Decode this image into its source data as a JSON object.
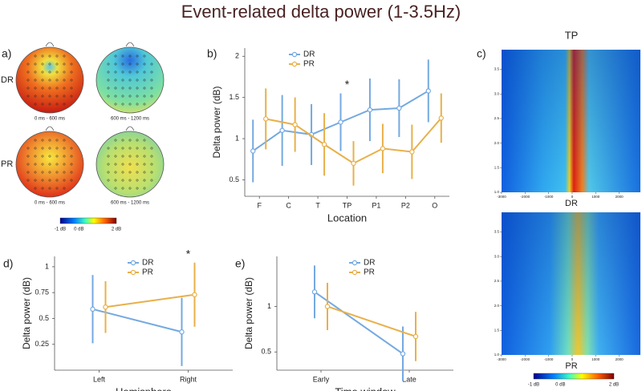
{
  "title": "Event-related delta power (1-3.5Hz)",
  "topomaps": {
    "panel": "a)",
    "rows": [
      {
        "label": "DR",
        "windows": [
          "0 ms - 600 ms",
          "600 ms - 1200 ms"
        ]
      },
      {
        "label": "PR",
        "windows": [
          "0 ms - 600 ms",
          "600 ms - 1200 ms"
        ]
      }
    ],
    "colorbar": [
      "-1 dB",
      "0 dB",
      "2 dB"
    ]
  },
  "spectrograms": {
    "panel": "c)",
    "title": "TP",
    "maps": [
      {
        "label": "DR"
      },
      {
        "label": "PR"
      }
    ],
    "xlim": [
      -3000,
      2900
    ],
    "xticks": [
      -3000,
      -2000,
      -1000,
      0,
      1000,
      2000
    ],
    "ylim": [
      1,
      3.9
    ],
    "yticks": [
      {
        "value": 1,
        "label": "1.0"
      },
      {
        "value": 1.5,
        "label": "1.5"
      },
      {
        "value": 2,
        "label": "2.0"
      },
      {
        "value": 2.5,
        "label": "2.5"
      },
      {
        "value": 3,
        "label": "3.0"
      },
      {
        "value": 3.5,
        "label": "3.5"
      }
    ],
    "colorbar": [
      "-1 dB",
      "0 dB",
      "2 dB"
    ]
  },
  "chart_data": [
    {
      "type": "line",
      "panel": "b)",
      "xlabel": "Location",
      "ylabel": "Delta power (dB)",
      "categories": [
        "F",
        "C",
        "T",
        "TP",
        "P1",
        "P2",
        "O"
      ],
      "ylim": [
        0.3,
        2.1
      ],
      "yticks": [
        0.5,
        1,
        1.5,
        2
      ],
      "legend": "upper left",
      "series": [
        {
          "name": "DR",
          "color": "#74a9e0",
          "values": [
            0.85,
            1.1,
            1.05,
            1.2,
            1.35,
            1.37,
            1.58
          ],
          "errors": [
            0.38,
            0.43,
            0.37,
            0.35,
            0.38,
            0.35,
            0.38
          ]
        },
        {
          "name": "PR",
          "color": "#e8b04a",
          "values": [
            1.24,
            1.17,
            0.93,
            0.7,
            0.88,
            0.84,
            1.25
          ],
          "errors": [
            0.37,
            0.33,
            0.38,
            0.27,
            0.3,
            0.33,
            0.3
          ]
        }
      ],
      "annotations": [
        {
          "text": "*",
          "at": "TP"
        }
      ]
    },
    {
      "type": "line",
      "panel": "d)",
      "xlabel": "Hemisphere",
      "ylabel": "Delta power (dB)",
      "categories": [
        "Left",
        "Right"
      ],
      "ylim": [
        0,
        1.1
      ],
      "yticks": [
        0.25,
        0.5,
        0.75,
        1
      ],
      "legend": "upper center",
      "series": [
        {
          "name": "DR",
          "color": "#74a9e0",
          "values": [
            0.59,
            0.37
          ],
          "errors": [
            0.33,
            0.33
          ]
        },
        {
          "name": "PR",
          "color": "#e8b04a",
          "values": [
            0.61,
            0.73
          ],
          "errors": [
            0.25,
            0.31
          ]
        }
      ],
      "annotations": [
        {
          "text": "*",
          "at": "Right"
        }
      ]
    },
    {
      "type": "line",
      "panel": "e)",
      "xlabel": "Time window",
      "ylabel": "Delta power (dB)",
      "categories": [
        "Early",
        "Late"
      ],
      "ylim": [
        0.3,
        1.55
      ],
      "yticks": [
        0.5,
        1
      ],
      "legend": "upper center",
      "series": [
        {
          "name": "DR",
          "color": "#74a9e0",
          "values": [
            1.16,
            0.48
          ],
          "errors": [
            0.29,
            0.3
          ]
        },
        {
          "name": "PR",
          "color": "#e8b04a",
          "values": [
            1.0,
            0.67
          ],
          "errors": [
            0.26,
            0.27
          ]
        }
      ]
    }
  ]
}
